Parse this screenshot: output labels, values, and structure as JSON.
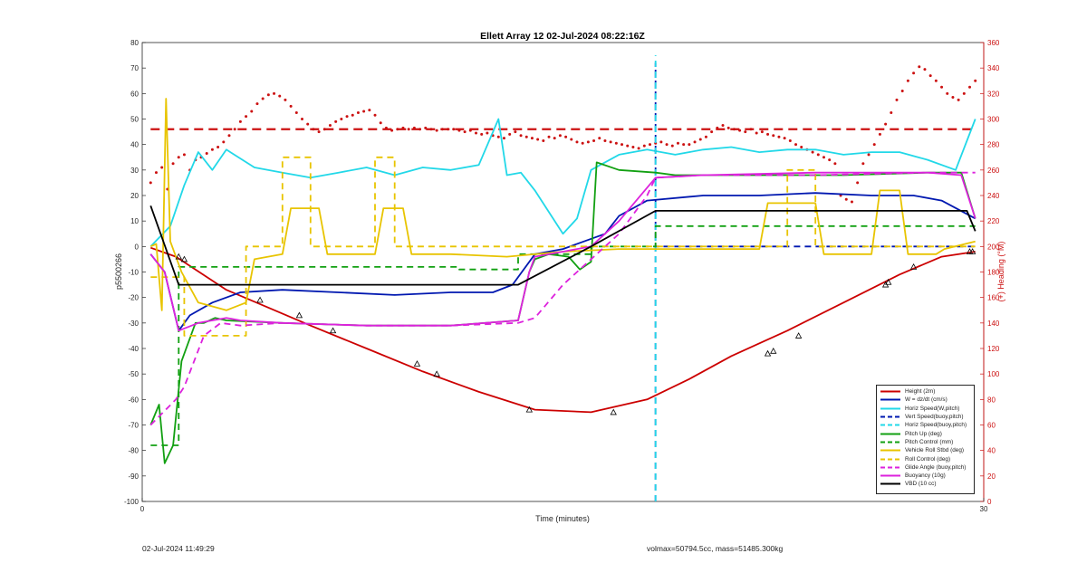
{
  "chart_data": {
    "type": "line",
    "title": "Ellett Array 12 02-Jul-2024 08:22:16Z",
    "xlabel": "Time (minutes)",
    "ylabel": "p5500266",
    "y2label": "(+) Heading (°M)",
    "xlim": [
      0,
      30
    ],
    "ylim": [
      -100,
      80
    ],
    "y2lim": [
      0,
      360
    ],
    "xticks": [
      "0",
      "30"
    ],
    "yticks": [
      "80",
      "70",
      "60",
      "50",
      "40",
      "30",
      "20",
      "10",
      "0",
      "-10",
      "-20",
      "-30",
      "-40",
      "-50",
      "-60",
      "-70",
      "-80",
      "-90",
      "-100"
    ],
    "y2ticks": [
      "360",
      "340",
      "320",
      "300",
      "280",
      "260",
      "240",
      "220",
      "200",
      "180",
      "160",
      "140",
      "120",
      "100",
      "80",
      "60",
      "40",
      "20",
      "0"
    ],
    "grid": false,
    "legend_position": "bottom-right",
    "series": [
      {
        "name": "Height (2m)",
        "color": "#cc0000",
        "style": "solid",
        "x": [
          0.3,
          1.2,
          3,
          4.5,
          6,
          8,
          10,
          12,
          14,
          16,
          18,
          19.5,
          21,
          23,
          25,
          27,
          28.5,
          29.7
        ],
        "y": [
          -0.5,
          -4,
          -17,
          -24,
          -31,
          -40,
          -49,
          -57,
          -64,
          -65,
          -60,
          -52,
          -43,
          -33,
          -22,
          -11,
          -4,
          -2
        ]
      },
      {
        "name": "W = dz/dt (cm/s)",
        "color": "#0018b0",
        "style": "solid",
        "x": [
          0.3,
          0.8,
          1.3,
          1.7,
          2.5,
          3.5,
          5,
          7,
          9,
          11,
          12.5,
          13.2,
          14,
          15,
          16.5,
          17,
          18,
          20,
          22,
          24,
          26,
          27.5,
          28.5,
          29.7
        ],
        "y": [
          -3,
          -10,
          -33,
          -27,
          -22,
          -18,
          -17,
          -18,
          -19,
          -18,
          -18,
          -15,
          -3,
          -1,
          5,
          12,
          18,
          20,
          20,
          21,
          20,
          20,
          18,
          11
        ]
      },
      {
        "name": "Horiz Speed(W,pitch)",
        "color": "#22d8e8",
        "style": "solid",
        "x": [
          0.3,
          1,
          1.5,
          2,
          2.5,
          3,
          4,
          5,
          6,
          7,
          8,
          9,
          10,
          11,
          12,
          12.7,
          13,
          13.5,
          14,
          15,
          15.5,
          16,
          17,
          18,
          19,
          20,
          21,
          22,
          23,
          24,
          25,
          26,
          27,
          28,
          29,
          29.7
        ],
        "y": [
          0,
          8,
          24,
          37,
          30,
          38,
          31,
          29,
          27,
          29,
          31,
          28,
          31,
          30,
          32,
          50,
          28,
          29,
          22,
          5,
          11,
          30,
          36,
          38,
          36,
          38,
          39,
          37,
          38,
          38,
          36,
          37,
          37,
          34,
          30,
          50
        ]
      },
      {
        "name": "Vert Speed(buoy,pitch)",
        "color": "#0018b0",
        "style": "dashed",
        "x": [
          18.3,
          18.3,
          18.3,
          29.7
        ],
        "y": [
          -100,
          72,
          0,
          0
        ]
      },
      {
        "name": "Horiz Speed(buoy,pitch)",
        "color": "#22d8e8",
        "style": "dashed",
        "x": [
          18.3,
          18.3
        ],
        "y": [
          -100,
          75
        ]
      },
      {
        "name": "Pitch Up (deg)",
        "color": "#12a012",
        "style": "solid",
        "x": [
          0.3,
          0.6,
          0.8,
          1.1,
          1.4,
          1.9,
          2.2,
          2.6,
          3,
          5,
          8,
          11,
          13.4,
          13.8,
          14,
          14.5,
          15.2,
          15.6,
          16,
          16.2,
          17,
          18.3,
          19,
          22,
          25,
          28,
          29.2,
          29.7
        ],
        "y": [
          -70,
          -62,
          -85,
          -78,
          -45,
          -30,
          -30,
          -28,
          -29,
          -30,
          -31,
          -31,
          -29,
          -10,
          -5,
          -3,
          -4,
          -9,
          -6,
          33,
          30,
          29,
          28,
          28,
          28,
          29,
          29,
          11
        ]
      },
      {
        "name": "Pitch Control (mm)",
        "color": "#12a012",
        "style": "dashed",
        "x": [
          0.3,
          1.3,
          1.3,
          11.3,
          11.3,
          13.4,
          13.4,
          16,
          16,
          18.3,
          18.3,
          29.7
        ],
        "y": [
          -78,
          -78,
          -8,
          -8,
          -9,
          -9,
          -3,
          -3,
          0,
          0,
          8,
          8
        ]
      },
      {
        "name": "Vehicle Roll Stbd (deg)",
        "color": "#e8c400",
        "style": "solid",
        "x": [
          0.3,
          0.5,
          0.7,
          0.85,
          1,
          1.4,
          2,
          3,
          3.7,
          4,
          5,
          5.3,
          6.3,
          6.6,
          8.3,
          8.6,
          9.3,
          9.6,
          11,
          13,
          15,
          17,
          20,
          22,
          22.3,
          24,
          24.3,
          26,
          26.3,
          27,
          27.3,
          28.3,
          28.6,
          29.7
        ],
        "y": [
          0,
          1,
          -25,
          58,
          2,
          -10,
          -22,
          -25,
          -22,
          -5,
          -3,
          15,
          15,
          -3,
          -3,
          15,
          15,
          -3,
          -3,
          -4,
          -2,
          -1,
          -1,
          -1,
          17,
          17,
          -3,
          -3,
          22,
          22,
          -3,
          -3,
          -1,
          2
        ]
      },
      {
        "name": "Roll Control (deg)",
        "color": "#e8c400",
        "style": "dashed",
        "x": [
          0.3,
          1.5,
          1.5,
          3.7,
          3.7,
          5,
          5,
          6,
          6,
          8.3,
          8.3,
          9,
          9,
          18.3,
          18.3,
          23,
          23,
          24,
          24,
          29.7
        ],
        "y": [
          -12,
          -12,
          -35,
          -35,
          0,
          0,
          35,
          35,
          0,
          0,
          35,
          35,
          0,
          0,
          0,
          0,
          30,
          30,
          0,
          0
        ]
      },
      {
        "name": "Glide Angle (buoy,pitch)",
        "color": "#dd22dd",
        "style": "dashed",
        "x": [
          0.3,
          1.2,
          1.5,
          2.2,
          2.8,
          3.5,
          5,
          8,
          11,
          13.4,
          14,
          15,
          16,
          17,
          18,
          18.3,
          20,
          24,
          28,
          29.7
        ],
        "y": [
          -70,
          -60,
          -55,
          -35,
          -30,
          -31,
          -30,
          -31,
          -31,
          -30,
          -28,
          -15,
          -5,
          5,
          20,
          27,
          28,
          28,
          29,
          29
        ]
      },
      {
        "name": "Buoyancy (10g)",
        "color": "#dd22dd",
        "style": "solid",
        "x": [
          0.3,
          0.8,
          1.3,
          2,
          3,
          3.5,
          5,
          8,
          11,
          13.4,
          13.8,
          14,
          15,
          16,
          17,
          18.3,
          20,
          24,
          28,
          29.2,
          29.7
        ],
        "y": [
          -3,
          -10,
          -33,
          -30,
          -28,
          -29,
          -30,
          -31,
          -31,
          -29,
          -10,
          -4,
          -2,
          0,
          10,
          27,
          28,
          29,
          29,
          28,
          11
        ]
      },
      {
        "name": "VBD (10 cc)",
        "color": "#000000",
        "style": "solid",
        "x": [
          0.3,
          1.3,
          11.3,
          13.4,
          16,
          18.3,
          29.4,
          29.7
        ],
        "y": [
          16,
          -15,
          -15,
          -15,
          0,
          14,
          14,
          6
        ]
      }
    ],
    "heading": {
      "name": "(+) Heading (°M)",
      "color": "#cc1111",
      "reference_deg": 292,
      "x": [
        0.3,
        0.5,
        0.7,
        0.9,
        1.1,
        1.3,
        1.5,
        1.7,
        1.9,
        2.1,
        2.3,
        2.5,
        2.7,
        2.9,
        3.1,
        3.3,
        3.5,
        3.7,
        3.9,
        4.1,
        4.3,
        4.5,
        4.7,
        4.9,
        5.1,
        5.3,
        5.5,
        5.7,
        5.9,
        6.1,
        6.3,
        6.5,
        6.7,
        6.9,
        7.1,
        7.3,
        7.5,
        7.7,
        7.9,
        8.1,
        8.3,
        8.5,
        8.7,
        8.9,
        9.1,
        9.3,
        9.5,
        9.7,
        9.9,
        10.1,
        10.3,
        10.5,
        10.7,
        10.9,
        11.1,
        11.3,
        11.5,
        11.7,
        11.9,
        12.1,
        12.3,
        12.5,
        12.7,
        12.9,
        13.1,
        13.3,
        13.5,
        13.7,
        13.9,
        14.1,
        14.3,
        14.5,
        14.7,
        14.9,
        15.1,
        15.3,
        15.5,
        15.7,
        15.9,
        16.1,
        16.3,
        16.5,
        16.7,
        16.9,
        17.1,
        17.3,
        17.5,
        17.7,
        17.9,
        18.1,
        18.3,
        18.5,
        18.7,
        18.9,
        19.1,
        19.3,
        19.5,
        19.7,
        19.9,
        20.1,
        20.3,
        20.5,
        20.7,
        20.9,
        21.1,
        21.3,
        21.5,
        21.7,
        21.9,
        22.1,
        22.3,
        22.5,
        22.7,
        22.9,
        23.1,
        23.3,
        23.5,
        23.7,
        23.9,
        24.1,
        24.3,
        24.5,
        24.7,
        24.9,
        25.1,
        25.3,
        25.5,
        25.7,
        25.9,
        26.1,
        26.3,
        26.5,
        26.7,
        26.9,
        27.1,
        27.3,
        27.5,
        27.7,
        27.9,
        28.1,
        28.3,
        28.5,
        28.7,
        28.9,
        29.1,
        29.3,
        29.5,
        29.7
      ],
      "y": [
        250,
        258,
        262,
        245,
        265,
        270,
        272,
        260,
        268,
        270,
        273,
        276,
        278,
        282,
        287,
        292,
        298,
        302,
        306,
        312,
        316,
        319,
        320,
        318,
        315,
        310,
        305,
        300,
        296,
        292,
        290,
        292,
        295,
        298,
        300,
        302,
        303,
        305,
        306,
        307,
        303,
        297,
        293,
        291,
        292,
        293,
        292,
        293,
        292,
        293,
        292,
        291,
        292,
        292,
        292,
        291,
        290,
        291,
        289,
        288,
        289,
        287,
        286,
        285,
        288,
        290,
        287,
        286,
        285,
        284,
        283,
        286,
        285,
        287,
        286,
        284,
        282,
        281,
        282,
        283,
        285,
        283,
        282,
        281,
        280,
        279,
        278,
        277,
        279,
        280,
        281,
        282,
        280,
        279,
        281,
        280,
        280,
        282,
        284,
        286,
        290,
        293,
        295,
        293,
        292,
        291,
        290,
        292,
        289,
        290,
        288,
        287,
        286,
        285,
        283,
        280,
        278,
        276,
        274,
        272,
        270,
        268,
        265,
        240,
        237,
        235,
        250,
        265,
        272,
        280,
        288,
        296,
        305,
        315,
        322,
        330,
        336,
        341,
        339,
        334,
        330,
        325,
        320,
        317,
        315,
        320,
        325,
        330
      ]
    },
    "markers": {
      "series": "Height (2m)",
      "symbol": "triangle",
      "x": [
        1.3,
        1.5,
        4.2,
        5.6,
        6.8,
        9.8,
        10.5,
        13.8,
        16.8,
        22.3,
        22.5,
        23.4,
        26.5,
        26.6,
        27.5,
        29.5,
        29.6
      ],
      "y": [
        -4,
        -5,
        -21,
        -27,
        -33,
        -46,
        -50,
        -64,
        -65,
        -42,
        -41,
        -35,
        -15,
        -14,
        -8,
        -2,
        -2
      ]
    }
  },
  "footer": {
    "left": "02-Jul-2024 11:49:29",
    "right": "volmax=50794.5cc, mass=51485.300kg"
  }
}
